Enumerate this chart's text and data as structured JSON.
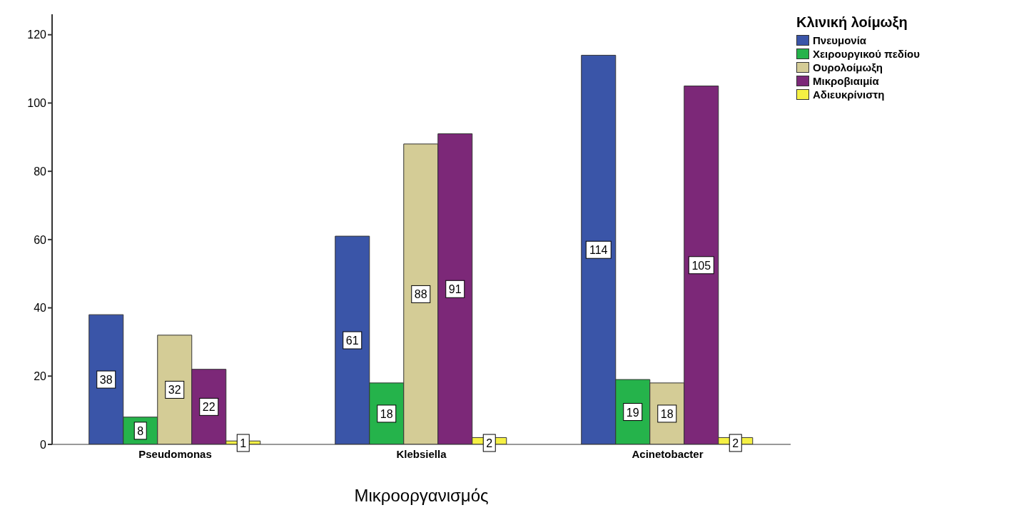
{
  "chart_data": {
    "type": "bar",
    "xlabel": "Μικροοργανισμός",
    "legend_title": "Κλινική λοίμωξη",
    "categories": [
      "Pseudomonas",
      "Klebsiella",
      "Acinetobacter"
    ],
    "series": [
      {
        "name": "Πνευμονία",
        "color": "#3a55a8",
        "values": [
          38,
          61,
          114
        ]
      },
      {
        "name": "Χειρουργικού πεδίου",
        "color": "#25b34b",
        "values": [
          8,
          18,
          19
        ]
      },
      {
        "name": "Ουρολοίμωξη",
        "color": "#d4cc96",
        "values": [
          32,
          88,
          18
        ]
      },
      {
        "name": "Μικροβιαιμία",
        "color": "#7c2878",
        "values": [
          22,
          91,
          105
        ]
      },
      {
        "name": "Αδιευκρίνιστη",
        "color": "#f5f044",
        "values": [
          1,
          2,
          2
        ]
      }
    ],
    "ylim": [
      0,
      126
    ],
    "yticks": [
      0,
      20,
      40,
      60,
      80,
      100,
      120
    ],
    "grid": false,
    "legend": "right",
    "data_labels": true
  }
}
